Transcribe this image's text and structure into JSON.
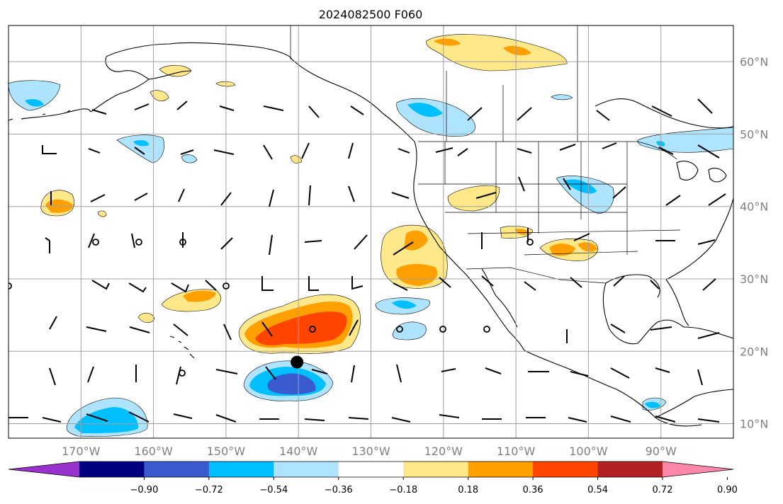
{
  "title": "2024082500 F060",
  "map": {
    "lon_range": [
      -180,
      -80
    ],
    "lat_range": [
      8,
      65
    ],
    "lon_gridlines": [
      -170,
      -160,
      -150,
      -140,
      -130,
      -120,
      -110,
      -100,
      -90
    ],
    "lat_gridlines": [
      10,
      20,
      30,
      40,
      50,
      60
    ],
    "lon_labels": [
      "170°W",
      "160°W",
      "150°W",
      "140°W",
      "130°W",
      "120°W",
      "110°W",
      "100°W",
      "90°W"
    ],
    "lat_labels": [
      "10°N",
      "20°N",
      "30°N",
      "40°N",
      "50°N",
      "60°N"
    ],
    "grid": true,
    "storm_marker": {
      "lon": -140.2,
      "lat": 18.5
    }
  },
  "colorbar": {
    "tick_labels": [
      "−0.90",
      "−0.72",
      "−0.54",
      "−0.36",
      "−0.18",
      "0.18",
      "0.36",
      "0.54",
      "0.72",
      "0.90"
    ],
    "colors": [
      "#9932cc",
      "#000080",
      "#3a5bd0",
      "#00bfff",
      "#aee4ff",
      "#ffffff",
      "#ffe88a",
      "#ffa000",
      "#ff4500",
      "#b22222",
      "#ff88aa"
    ]
  }
}
